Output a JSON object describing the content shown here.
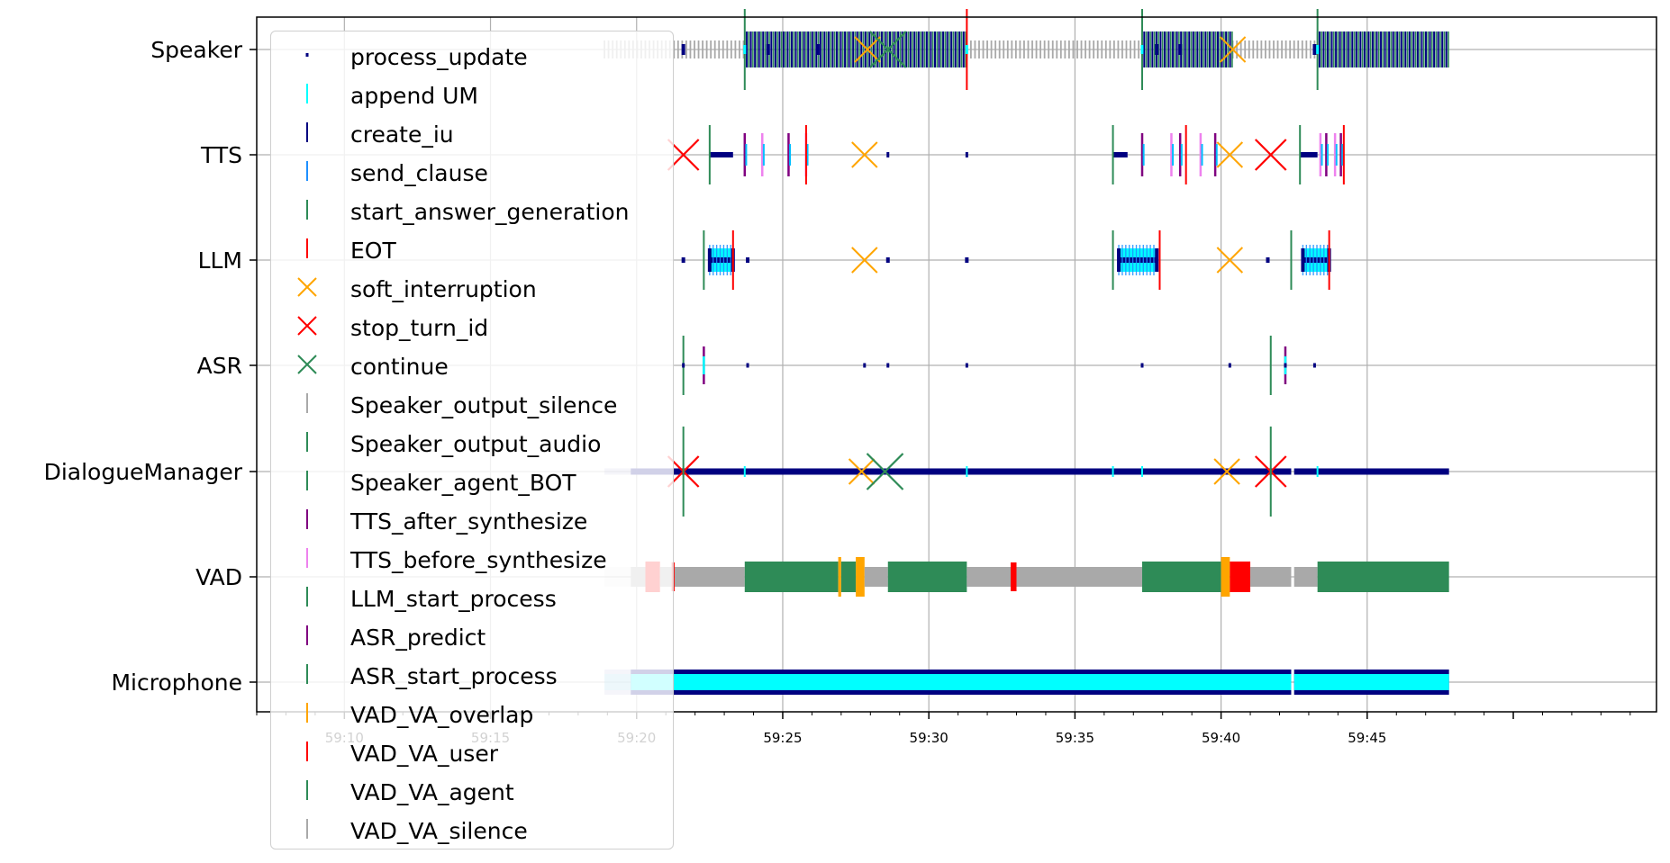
{
  "chart_data": {
    "type": "event_timeline",
    "title": "",
    "xlabel": "",
    "ylabel": "",
    "x_unit": "seconds (mm:ss)",
    "xlim": [
      3547.0,
      3594.9
    ],
    "x_ticks": [
      {
        "value": 3550,
        "label": "59:10"
      },
      {
        "value": 3555,
        "label": "59:15"
      },
      {
        "value": 3560,
        "label": "59:20"
      },
      {
        "value": 3565,
        "label": "59:25"
      },
      {
        "value": 3570,
        "label": "59:30"
      },
      {
        "value": 3575,
        "label": "59:35"
      },
      {
        "value": 3580,
        "label": "59:40"
      },
      {
        "value": 3585,
        "label": "59:45"
      }
    ],
    "rows": [
      "Speaker",
      "TTS",
      "LLM",
      "ASR",
      "DialogueManager",
      "VAD",
      "Microphone"
    ],
    "grid": true,
    "legend_position": "upper-left",
    "legend": [
      {
        "label": "process_update",
        "marker": "tick",
        "color": "#000080"
      },
      {
        "label": "append UM",
        "marker": "tick",
        "color": "#00ffff"
      },
      {
        "label": "create_iu",
        "marker": "tick",
        "color": "#000080"
      },
      {
        "label": "send_clause",
        "marker": "tick",
        "color": "#1e90ff"
      },
      {
        "label": "start_answer_generation",
        "marker": "tick",
        "color": "#2e8b57"
      },
      {
        "label": "EOT",
        "marker": "tick",
        "color": "#ff0000"
      },
      {
        "label": "soft_interruption",
        "marker": "x",
        "color": "#ffa500"
      },
      {
        "label": "stop_turn_id",
        "marker": "x",
        "color": "#ff0000"
      },
      {
        "label": "continue",
        "marker": "x",
        "color": "#2e8b57"
      },
      {
        "label": "Speaker_output_silence",
        "marker": "tick",
        "color": "#a9a9a9"
      },
      {
        "label": "Speaker_output_audio",
        "marker": "tick",
        "color": "#2e8b57"
      },
      {
        "label": "Speaker_agent_BOT",
        "marker": "tick",
        "color": "#2e8b57"
      },
      {
        "label": "TTS_after_synthesize",
        "marker": "tick",
        "color": "#800080"
      },
      {
        "label": "TTS_before_synthesize",
        "marker": "tick",
        "color": "#ee82ee"
      },
      {
        "label": "LLM_start_process",
        "marker": "tick",
        "color": "#2e8b57"
      },
      {
        "label": "ASR_predict",
        "marker": "tick",
        "color": "#800080"
      },
      {
        "label": "ASR_start_process",
        "marker": "tick",
        "color": "#2e8b57"
      },
      {
        "label": "VAD_VA_overlap",
        "marker": "tick",
        "color": "#ffa500"
      },
      {
        "label": "VAD_VA_user",
        "marker": "tick",
        "color": "#ff0000"
      },
      {
        "label": "VAD_VA_agent",
        "marker": "tick",
        "color": "#2e8b57"
      },
      {
        "label": "VAD_VA_silence",
        "marker": "tick",
        "color": "#a9a9a9"
      }
    ],
    "series": {
      "microphone_bands": [
        {
          "start": 3558.9,
          "end": 3559.8,
          "faded": true
        },
        {
          "start": 3559.8,
          "end": 3582.4
        },
        {
          "start": 3582.5,
          "end": 3587.8
        }
      ],
      "vad_segments": [
        {
          "state": "silence",
          "start": 3558.9,
          "end": 3559.8,
          "faded": true
        },
        {
          "state": "silence",
          "start": 3559.8,
          "end": 3560.3
        },
        {
          "state": "user",
          "start": 3560.3,
          "end": 3560.8
        },
        {
          "state": "silence",
          "start": 3560.8,
          "end": 3561.2
        },
        {
          "state": "user",
          "start": 3561.2,
          "end": 3561.3
        },
        {
          "state": "silence",
          "start": 3561.3,
          "end": 3563.7
        },
        {
          "state": "agent",
          "start": 3563.7,
          "end": 3566.9
        },
        {
          "state": "overlap",
          "start": 3566.9,
          "end": 3567.0
        },
        {
          "state": "agent",
          "start": 3567.0,
          "end": 3567.5
        },
        {
          "state": "overlap",
          "start": 3567.5,
          "end": 3567.8
        },
        {
          "state": "silence",
          "start": 3567.8,
          "end": 3568.6
        },
        {
          "state": "agent",
          "start": 3568.6,
          "end": 3571.3
        },
        {
          "state": "silence",
          "start": 3571.3,
          "end": 3572.8
        },
        {
          "state": "user",
          "start": 3572.8,
          "end": 3573.0
        },
        {
          "state": "silence",
          "start": 3573.0,
          "end": 3577.3
        },
        {
          "state": "agent",
          "start": 3577.3,
          "end": 3580.0
        },
        {
          "state": "overlap",
          "start": 3580.0,
          "end": 3580.3
        },
        {
          "state": "user",
          "start": 3580.3,
          "end": 3581.0
        },
        {
          "state": "silence",
          "start": 3581.0,
          "end": 3582.4
        },
        {
          "state": "silence",
          "start": 3582.5,
          "end": 3583.3
        },
        {
          "state": "agent",
          "start": 3583.3,
          "end": 3587.8
        }
      ],
      "dialogue_manager_bands": [
        {
          "start": 3558.9,
          "end": 3559.8,
          "faded": true
        },
        {
          "start": 3559.8,
          "end": 3582.4
        },
        {
          "start": 3582.5,
          "end": 3587.8
        }
      ],
      "dialogue_manager_append_um": [
        3563.7,
        3571.3,
        3576.3,
        3577.3,
        3583.3
      ],
      "speaker_silence_ranges": [
        {
          "start": 3558.9,
          "end": 3563.7
        },
        {
          "start": 3571.3,
          "end": 3577.3
        },
        {
          "start": 3580.4,
          "end": 3583.3
        }
      ],
      "speaker_audio_ranges": [
        {
          "start": 3563.7,
          "end": 3571.3
        },
        {
          "start": 3577.3,
          "end": 3580.4
        },
        {
          "start": 3583.3,
          "end": 3587.8
        }
      ],
      "speaker_bot": [
        3563.7,
        3577.3,
        3583.3
      ],
      "speaker_eot": [
        3571.3
      ],
      "tts_create_iu": [
        {
          "start": 3562.5,
          "end": 3563.3
        },
        {
          "start": 3576.3,
          "end": 3576.8
        },
        {
          "start": 3582.7,
          "end": 3583.3
        }
      ],
      "tts_synth_ticks": [
        3563.7,
        3564.3,
        3565.2,
        3565.8,
        3577.3,
        3578.3,
        3578.6,
        3579.3,
        3579.8,
        3583.4,
        3583.6,
        3583.9,
        3584.1
      ],
      "tts_start_answer": [
        3562.5,
        3576.3,
        3582.7
      ],
      "tts_eot": [
        3565.8,
        3578.8,
        3584.2
      ],
      "tts_process_update": [
        3568.6,
        3571.3
      ],
      "llm_clusters": [
        {
          "start": 3562.5,
          "end": 3563.3
        },
        {
          "start": 3576.5,
          "end": 3577.8
        },
        {
          "start": 3582.8,
          "end": 3583.7
        }
      ],
      "llm_start_process": [
        3562.3,
        3576.3,
        3582.4
      ],
      "llm_eot": [
        3563.3,
        3577.9,
        3583.7
      ],
      "llm_process_update": [
        3561.6,
        3563.8,
        3568.6,
        3571.3,
        3581.6
      ],
      "asr_start_process": [
        3561.6,
        3581.7
      ],
      "asr_predict": [
        3562.3,
        3582.2
      ],
      "asr_process_update": [
        3561.6,
        3563.8,
        3567.8,
        3568.6,
        3571.3,
        3577.3,
        3580.3,
        3582.2,
        3583.2
      ],
      "soft_interruptions": [
        {
          "row": "Speaker",
          "x": 3567.9
        },
        {
          "row": "Speaker",
          "x": 3580.4
        },
        {
          "row": "TTS",
          "x": 3567.8
        },
        {
          "row": "TTS",
          "x": 3580.3
        },
        {
          "row": "LLM",
          "x": 3567.8
        },
        {
          "row": "LLM",
          "x": 3580.3
        },
        {
          "row": "DialogueManager",
          "x": 3567.7
        },
        {
          "row": "DialogueManager",
          "x": 3580.2
        }
      ],
      "stop_turn_ids": [
        {
          "row": "TTS",
          "x": 3561.6
        },
        {
          "row": "TTS",
          "x": 3581.7
        },
        {
          "row": "DialogueManager",
          "x": 3561.6
        },
        {
          "row": "DialogueManager",
          "x": 3581.7
        }
      ],
      "continues": [
        {
          "row": "Speaker",
          "x": 3568.6
        },
        {
          "row": "DialogueManager",
          "x": 3568.5
        }
      ]
    }
  }
}
